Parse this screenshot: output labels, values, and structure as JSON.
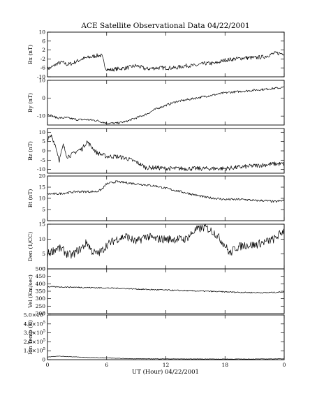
{
  "figure": {
    "title": "ACE Satellite Observational Data   04/22/2001",
    "xlabel": "UT (Hour)  04/22/2001"
  },
  "chart_data": [
    {
      "type": "line",
      "ylabel": "Bx (nT)",
      "ylim": [
        -10,
        10
      ],
      "yticks": [
        "-10",
        "-6",
        "-2",
        "2",
        "6",
        "10"
      ],
      "yticks_values": [
        -10,
        -6,
        -2,
        2,
        6,
        10
      ],
      "xlim": [
        0,
        24
      ],
      "x": [
        0,
        0.5,
        1,
        1.5,
        2,
        2.5,
        3,
        3.5,
        4,
        4.5,
        5,
        5.5,
        5.9,
        6.2,
        7,
        8,
        9,
        10,
        11,
        12,
        13,
        14,
        15,
        16,
        17,
        18,
        19,
        20,
        21,
        22,
        23,
        24
      ],
      "values": [
        -6.5,
        -5.5,
        -4,
        -3.5,
        -4.5,
        -4,
        -3,
        -2,
        -1.5,
        -1,
        -0.5,
        -0.5,
        -6,
        -7,
        -6.5,
        -6,
        -5,
        -6.5,
        -6,
        -6,
        -6,
        -5,
        -5,
        -4,
        -4,
        -2.5,
        -2,
        -1.5,
        -1.5,
        -1,
        0.5,
        0.5
      ]
    },
    {
      "type": "line",
      "ylabel": "By (nT)",
      "ylim": [
        -15,
        10
      ],
      "yticks": [
        "-10",
        "0",
        "10"
      ],
      "yticks_values": [
        -10,
        0,
        10
      ],
      "xlim": [
        0,
        24
      ],
      "x": [
        0,
        1,
        2,
        3,
        4,
        5,
        6,
        7,
        8,
        9,
        10,
        11,
        12,
        13,
        14,
        15,
        16,
        17,
        18,
        19,
        20,
        21,
        22,
        23,
        24
      ],
      "values": [
        -9,
        -11,
        -11,
        -12,
        -12,
        -12.5,
        -14,
        -14,
        -13,
        -11,
        -9,
        -6,
        -4,
        -2,
        -1,
        0,
        1,
        2,
        3,
        3.5,
        4,
        4.5,
        5,
        5.5,
        6
      ]
    },
    {
      "type": "line",
      "ylabel": "Bz (nT)",
      "ylim": [
        -12,
        12
      ],
      "yticks": [
        "-10",
        "-5",
        "0",
        "5",
        "10"
      ],
      "yticks_values": [
        -10,
        -5,
        0,
        5,
        10
      ],
      "xlim": [
        0,
        24
      ],
      "x": [
        0,
        0.4,
        0.8,
        1.2,
        1.6,
        2,
        2.5,
        3,
        3.5,
        4,
        5,
        6,
        7,
        8,
        9,
        10,
        11,
        12,
        13,
        14,
        15,
        16,
        17,
        18,
        19,
        20,
        21,
        22,
        23,
        24
      ],
      "values": [
        6,
        8,
        3,
        -5,
        3,
        -3,
        -2,
        0,
        1,
        5,
        -1,
        -3,
        -3,
        -4,
        -6,
        -9,
        -9,
        -9.5,
        -9.5,
        -9.5,
        -9.5,
        -9.5,
        -9.5,
        -9.5,
        -9,
        -8.5,
        -8,
        -7.5,
        -7,
        -7
      ]
    },
    {
      "type": "line",
      "ylabel": "Bt (nT)",
      "ylim": [
        0,
        20
      ],
      "yticks": [
        "0",
        "5",
        "10",
        "15",
        "20"
      ],
      "yticks_values": [
        0,
        5,
        10,
        15,
        20
      ],
      "xlim": [
        0,
        24
      ],
      "x": [
        0,
        1,
        2,
        3,
        4,
        5,
        5.5,
        6,
        7,
        8,
        9,
        10,
        11,
        12,
        13,
        14,
        15,
        16,
        17,
        18,
        19,
        20,
        21,
        22,
        23,
        24
      ],
      "values": [
        12,
        12,
        12.5,
        13,
        13,
        13,
        14,
        16.5,
        17.5,
        17,
        16.5,
        16,
        15.5,
        14.5,
        13.5,
        12.5,
        11.5,
        10.5,
        10,
        9.5,
        9.5,
        9.5,
        9,
        9,
        8.5,
        9
      ]
    },
    {
      "type": "line",
      "ylabel": "Den (1/CC)",
      "ylim": [
        0,
        15
      ],
      "yticks": [
        "0",
        "5",
        "10",
        "15"
      ],
      "yticks_values": [
        0,
        5,
        10,
        15
      ],
      "xlim": [
        0,
        24
      ],
      "x": [
        0,
        0.5,
        1,
        1.5,
        2,
        2.5,
        3,
        3.5,
        4,
        4.5,
        5,
        5.5,
        6,
        6.5,
        7,
        8,
        9,
        10,
        11,
        12,
        13,
        14,
        15,
        16,
        17,
        18,
        18.5,
        19,
        20,
        21,
        22,
        23,
        24
      ],
      "values": [
        5,
        6,
        7,
        6.5,
        5,
        4.5,
        6,
        7,
        9,
        6,
        5,
        6,
        8,
        9,
        10,
        11,
        9,
        11,
        10,
        10,
        10,
        10,
        13,
        14,
        12,
        8,
        5,
        7,
        8,
        8,
        9,
        10,
        13
      ]
    },
    {
      "type": "line",
      "ylabel": "Vel (Km/sec)",
      "ylim": [
        200,
        500
      ],
      "yticks": [
        "200",
        "250",
        "300",
        "350",
        "400",
        "450",
        "500"
      ],
      "yticks_values": [
        200,
        250,
        300,
        350,
        400,
        450,
        500
      ],
      "xlim": [
        0,
        24
      ],
      "x": [
        0,
        2,
        4,
        6,
        8,
        10,
        12,
        14,
        16,
        18,
        20,
        22,
        24
      ],
      "values": [
        380,
        378,
        375,
        372,
        368,
        362,
        358,
        354,
        350,
        346,
        342,
        340,
        345
      ]
    },
    {
      "type": "line",
      "ylabel": "Ion Temp (K)",
      "ylim": [
        0,
        500000
      ],
      "yticks": [
        "0",
        "1.0×10",
        "2.0×10",
        "3.0×10",
        "4.0×10",
        "5.0×10"
      ],
      "yticks_values": [
        0,
        100000,
        200000,
        300000,
        400000,
        500000
      ],
      "ytick_exponent": "5",
      "xlim": [
        0,
        24
      ],
      "x": [
        0,
        1,
        2,
        3,
        4,
        5,
        6,
        7,
        8,
        10,
        12,
        14,
        16,
        18,
        20,
        22,
        24
      ],
      "values": [
        30000,
        40000,
        35000,
        30000,
        25000,
        22000,
        20000,
        15000,
        12000,
        10000,
        9000,
        8000,
        8000,
        7000,
        7000,
        8000,
        10000
      ]
    }
  ],
  "x_axis": {
    "ticks": [
      "0",
      "6",
      "12",
      "18",
      "0"
    ],
    "tick_values": [
      0,
      6,
      12,
      18,
      24
    ]
  }
}
